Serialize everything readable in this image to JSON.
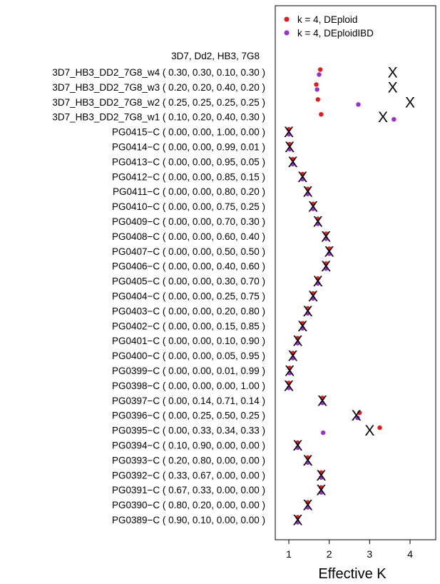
{
  "chart_data": {
    "type": "scatter",
    "title": "",
    "xlabel": "Effective K",
    "ylabel": "",
    "xlim": [
      0.65,
      4.75
    ],
    "x_ticks": [
      "1",
      "2",
      "3",
      "4"
    ],
    "grid": false,
    "legend_position": "top-right",
    "header_label": "3D7, Dd2, HB3, 7G8",
    "legend": [
      {
        "name": "k = 4, DEploid",
        "color": "#e41a1c"
      },
      {
        "name": "k = 4, DEploidIBD",
        "color": "#9932cc"
      }
    ],
    "samples": [
      {
        "label": "3D7_HB3_DD2_7G8_w4 ( 0.30, 0.30, 0.10, 0.30 )",
        "true_k": 3.57,
        "deploid": 1.78,
        "deploidibd": 1.75
      },
      {
        "label": "3D7_HB3_DD2_7G8_w3 ( 0.20, 0.20, 0.40, 0.20 )",
        "true_k": 3.57,
        "deploid": 1.68,
        "deploidibd": 1.7
      },
      {
        "label": "3D7_HB3_DD2_7G8_w2 ( 0.25, 0.25, 0.25, 0.25 )",
        "true_k": 4.0,
        "deploid": 1.72,
        "deploidibd": 2.72
      },
      {
        "label": "3D7_HB3_DD2_7G8_w1 ( 0.10, 0.20, 0.40, 0.30 )",
        "true_k": 3.33,
        "deploid": 1.8,
        "deploidibd": 3.6
      },
      {
        "label": "PG0415−C ( 0.00, 0.00, 1.00, 0.00 )",
        "true_k": 1.0,
        "deploid": 1.0,
        "deploidibd": 1.0
      },
      {
        "label": "PG0414−C ( 0.00, 0.00, 0.99, 0.01 )",
        "true_k": 1.02,
        "deploid": 1.02,
        "deploidibd": 1.02
      },
      {
        "label": "PG0413−C ( 0.00, 0.00, 0.95, 0.05 )",
        "true_k": 1.1,
        "deploid": 1.1,
        "deploidibd": 1.1
      },
      {
        "label": "PG0412−C ( 0.00, 0.00, 0.85, 0.15 )",
        "true_k": 1.34,
        "deploid": 1.34,
        "deploidibd": 1.34
      },
      {
        "label": "PG0411−C ( 0.00, 0.00, 0.80, 0.20 )",
        "true_k": 1.47,
        "deploid": 1.47,
        "deploidibd": 1.47
      },
      {
        "label": "PG0410−C ( 0.00, 0.00, 0.75, 0.25 )",
        "true_k": 1.6,
        "deploid": 1.6,
        "deploidibd": 1.6
      },
      {
        "label": "PG0409−C ( 0.00, 0.00, 0.70, 0.30 )",
        "true_k": 1.72,
        "deploid": 1.72,
        "deploidibd": 1.72
      },
      {
        "label": "PG0408−C ( 0.00, 0.00, 0.60, 0.40 )",
        "true_k": 1.92,
        "deploid": 1.92,
        "deploidibd": 1.92
      },
      {
        "label": "PG0407−C ( 0.00, 0.00, 0.50, 0.50 )",
        "true_k": 2.0,
        "deploid": 2.0,
        "deploidibd": 2.0
      },
      {
        "label": "PG0406−C ( 0.00, 0.00, 0.40, 0.60 )",
        "true_k": 1.92,
        "deploid": 1.92,
        "deploidibd": 1.92
      },
      {
        "label": "PG0405−C ( 0.00, 0.00, 0.30, 0.70 )",
        "true_k": 1.72,
        "deploid": 1.72,
        "deploidibd": 1.72
      },
      {
        "label": "PG0404−C ( 0.00, 0.00, 0.25, 0.75 )",
        "true_k": 1.6,
        "deploid": 1.6,
        "deploidibd": 1.6
      },
      {
        "label": "PG0403−C ( 0.00, 0.00, 0.20, 0.80 )",
        "true_k": 1.47,
        "deploid": 1.47,
        "deploidibd": 1.47
      },
      {
        "label": "PG0402−C ( 0.00, 0.00, 0.15, 0.85 )",
        "true_k": 1.34,
        "deploid": 1.34,
        "deploidibd": 1.34
      },
      {
        "label": "PG0401−C ( 0.00, 0.00, 0.10, 0.90 )",
        "true_k": 1.22,
        "deploid": 1.22,
        "deploidibd": 1.22
      },
      {
        "label": "PG0400−C ( 0.00, 0.00, 0.05, 0.95 )",
        "true_k": 1.1,
        "deploid": 1.1,
        "deploidibd": 1.1
      },
      {
        "label": "PG0399−C ( 0.00, 0.00, 0.01, 0.99 )",
        "true_k": 1.02,
        "deploid": 1.02,
        "deploidibd": 1.02
      },
      {
        "label": "PG0398−C ( 0.00, 0.00, 0.00, 1.00 )",
        "true_k": 1.0,
        "deploid": 1.0,
        "deploidibd": 1.0
      },
      {
        "label": "PG0397−C ( 0.00, 0.14, 0.71, 0.14 )",
        "true_k": 1.83,
        "deploid": 1.83,
        "deploidibd": 1.83
      },
      {
        "label": "PG0396−C ( 0.00, 0.25, 0.50, 0.25 )",
        "true_k": 2.67,
        "deploid": 2.75,
        "deploidibd": 2.7
      },
      {
        "label": "PG0395−C ( 0.00, 0.33, 0.34, 0.33 )",
        "true_k": 3.0,
        "deploid": 3.25,
        "deploidibd": 1.85
      },
      {
        "label": "PG0394−C ( 0.10, 0.90, 0.00, 0.00 )",
        "true_k": 1.22,
        "deploid": 1.22,
        "deploidibd": 1.22
      },
      {
        "label": "PG0393−C ( 0.20, 0.80, 0.00, 0.00 )",
        "true_k": 1.47,
        "deploid": 1.47,
        "deploidibd": 1.47
      },
      {
        "label": "PG0392−C ( 0.33, 0.67, 0.00, 0.00 )",
        "true_k": 1.8,
        "deploid": 1.8,
        "deploidibd": 1.8
      },
      {
        "label": "PG0391−C ( 0.67, 0.33, 0.00, 0.00 )",
        "true_k": 1.8,
        "deploid": 1.8,
        "deploidibd": 1.8
      },
      {
        "label": "PG0390−C ( 0.80, 0.20, 0.00, 0.00 )",
        "true_k": 1.47,
        "deploid": 1.47,
        "deploidibd": 1.47
      },
      {
        "label": "PG0389−C ( 0.90, 0.10, 0.00, 0.00 )",
        "true_k": 1.22,
        "deploid": 1.22,
        "deploidibd": 1.22
      }
    ],
    "true_marker": "X"
  }
}
